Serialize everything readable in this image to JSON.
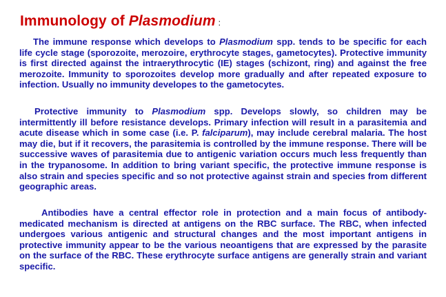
{
  "title": {
    "prefix": "Immunology of ",
    "italic": "Plasmodium",
    "suffix": ":"
  },
  "paragraphs": [
    {
      "a": "The immune response which develops to ",
      "i1": "Plasmodium",
      "b": " spp. tends to be specific for each life cycle stage (sporozoite, merozoire, erythrocyte stages, gametocytes). Protective immunity is first directed against the intraerythrocytic (IE) stages (schizont, ring) and against the free merozoite. Immunity to sporozoites develop more gradually and after repeated exposure to infection. Usually no immunity developes to the gametocytes."
    },
    {
      "a": "Protective immunity to ",
      "i1": "Plasmodium",
      "b": " spp. Develops slowly, so children may be intermittently ill before resistance develops. Primary infection will result in a parasitemia and acute disease which in some case (i.e. P. ",
      "i2": "falciparum",
      "c": "), may include cerebral malaria. The host may die, but if it recovers, the parasitemia is controlled by the immune response. There will be successive waves of parasitemia due to antigenic variation occurs much less frequently than in the trypanosome. In addition to bring variant specific, the protective immune response is also strain and species specific and so not protective against strain and species from different geographic areas."
    },
    {
      "a": "Antibodies have a central effector role in protection and a main focus of antibody-medicated mechanism is directed at antigens on the RBC surface. The RBC, when infected undergoes various antigenic and structural changes and the most important antigens in protective immunity appear to be the various neoantigens that are expressed by the parasite on the surface of the RBC. These erythrocyte surface antigens are generally strain and variant specific."
    }
  ]
}
